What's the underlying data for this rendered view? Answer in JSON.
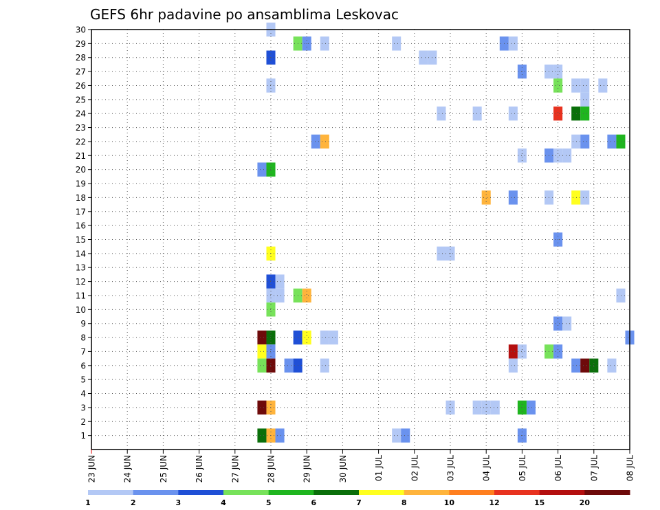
{
  "chart_data": {
    "type": "heatmap",
    "title": "GEFS 6hr padavine po ansamblima Leskovac",
    "xlabel": "",
    "ylabel": "",
    "x_tick_labels": [
      "23 JUN",
      "24 JUN",
      "25 JUN",
      "26 JUN",
      "27 JUN",
      "28 JUN",
      "29 JUN",
      "30 JUN",
      "01 JUL",
      "02 JUL",
      "03 JUL",
      "04 JUL",
      "05 JUL",
      "06 JUL",
      "07 JUL",
      "08 JUL"
    ],
    "y_tick_labels": [
      "1",
      "2",
      "3",
      "4",
      "5",
      "6",
      "7",
      "8",
      "9",
      "10",
      "11",
      "12",
      "13",
      "14",
      "15",
      "16",
      "17",
      "18",
      "19",
      "20",
      "21",
      "22",
      "23",
      "24",
      "25",
      "26",
      "27",
      "28",
      "29",
      "30"
    ],
    "xlim_steps": [
      0,
      60
    ],
    "ylim": [
      0,
      30
    ],
    "grid": true,
    "time_step": "6hr",
    "colorbar": {
      "levels": [
        "1",
        "2",
        "3",
        "4",
        "5",
        "6",
        "7",
        "8",
        "10",
        "12",
        "15",
        "20"
      ],
      "colors": [
        "#b3c8f5",
        "#6a92ee",
        "#1f4fd6",
        "#77e25a",
        "#1fb51f",
        "#0a6f0a",
        "#ffff1f",
        "#ffb43c",
        "#ff7f1f",
        "#e8321f",
        "#b40f0f",
        "#6e0a0a"
      ]
    },
    "cells": [
      {
        "member": 30,
        "step": 20,
        "level": 0
      },
      {
        "member": 29,
        "step": 23,
        "level": 3
      },
      {
        "member": 29,
        "step": 24,
        "level": 1
      },
      {
        "member": 29,
        "step": 26,
        "level": 0
      },
      {
        "member": 29,
        "step": 34,
        "level": 0
      },
      {
        "member": 29,
        "step": 46,
        "level": 1
      },
      {
        "member": 29,
        "step": 47,
        "level": 0
      },
      {
        "member": 28,
        "step": 20,
        "level": 2
      },
      {
        "member": 28,
        "step": 37,
        "level": 0
      },
      {
        "member": 28,
        "step": 38,
        "level": 0
      },
      {
        "member": 27,
        "step": 48,
        "level": 1
      },
      {
        "member": 27,
        "step": 51,
        "level": 0
      },
      {
        "member": 27,
        "step": 52,
        "level": 0
      },
      {
        "member": 26,
        "step": 20,
        "level": 0
      },
      {
        "member": 26,
        "step": 52,
        "level": 3
      },
      {
        "member": 26,
        "step": 54,
        "level": 0
      },
      {
        "member": 26,
        "step": 55,
        "level": 0
      },
      {
        "member": 26,
        "step": 57,
        "level": 0
      },
      {
        "member": 25,
        "step": 55,
        "level": 0
      },
      {
        "member": 24,
        "step": 39,
        "level": 0
      },
      {
        "member": 24,
        "step": 43,
        "level": 0
      },
      {
        "member": 24,
        "step": 47,
        "level": 0
      },
      {
        "member": 24,
        "step": 52,
        "level": 9
      },
      {
        "member": 24,
        "step": 54,
        "level": 5
      },
      {
        "member": 24,
        "step": 55,
        "level": 4
      },
      {
        "member": 22,
        "step": 25,
        "level": 1
      },
      {
        "member": 22,
        "step": 26,
        "level": 7
      },
      {
        "member": 22,
        "step": 54,
        "level": 0
      },
      {
        "member": 22,
        "step": 55,
        "level": 1
      },
      {
        "member": 22,
        "step": 58,
        "level": 1
      },
      {
        "member": 22,
        "step": 59,
        "level": 4
      },
      {
        "member": 21,
        "step": 48,
        "level": 0
      },
      {
        "member": 21,
        "step": 51,
        "level": 1
      },
      {
        "member": 21,
        "step": 52,
        "level": 0
      },
      {
        "member": 21,
        "step": 53,
        "level": 0
      },
      {
        "member": 20,
        "step": 19,
        "level": 1
      },
      {
        "member": 20,
        "step": 20,
        "level": 4
      },
      {
        "member": 18,
        "step": 44,
        "level": 7
      },
      {
        "member": 18,
        "step": 47,
        "level": 1
      },
      {
        "member": 18,
        "step": 51,
        "level": 0
      },
      {
        "member": 18,
        "step": 54,
        "level": 6
      },
      {
        "member": 18,
        "step": 55,
        "level": 0
      },
      {
        "member": 15,
        "step": 52,
        "level": 1
      },
      {
        "member": 14,
        "step": 20,
        "level": 6
      },
      {
        "member": 14,
        "step": 39,
        "level": 0
      },
      {
        "member": 14,
        "step": 40,
        "level": 0
      },
      {
        "member": 12,
        "step": 20,
        "level": 2
      },
      {
        "member": 12,
        "step": 21,
        "level": 0
      },
      {
        "member": 11,
        "step": 20,
        "level": 0
      },
      {
        "member": 11,
        "step": 21,
        "level": 0
      },
      {
        "member": 11,
        "step": 23,
        "level": 3
      },
      {
        "member": 11,
        "step": 24,
        "level": 7
      },
      {
        "member": 11,
        "step": 59,
        "level": 0
      },
      {
        "member": 10,
        "step": 20,
        "level": 3
      },
      {
        "member": 9,
        "step": 52,
        "level": 1
      },
      {
        "member": 9,
        "step": 53,
        "level": 0
      },
      {
        "member": 8,
        "step": 19,
        "level": 11
      },
      {
        "member": 8,
        "step": 20,
        "level": 5
      },
      {
        "member": 8,
        "step": 23,
        "level": 2
      },
      {
        "member": 8,
        "step": 24,
        "level": 6
      },
      {
        "member": 8,
        "step": 26,
        "level": 0
      },
      {
        "member": 8,
        "step": 27,
        "level": 0
      },
      {
        "member": 8,
        "step": 60,
        "level": 1
      },
      {
        "member": 7,
        "step": 19,
        "level": 6
      },
      {
        "member": 7,
        "step": 20,
        "level": 1
      },
      {
        "member": 7,
        "step": 47,
        "level": 10
      },
      {
        "member": 7,
        "step": 48,
        "level": 0
      },
      {
        "member": 7,
        "step": 51,
        "level": 3
      },
      {
        "member": 7,
        "step": 52,
        "level": 1
      },
      {
        "member": 6,
        "step": 19,
        "level": 3
      },
      {
        "member": 6,
        "step": 20,
        "level": 11
      },
      {
        "member": 6,
        "step": 22,
        "level": 1
      },
      {
        "member": 6,
        "step": 23,
        "level": 2
      },
      {
        "member": 6,
        "step": 26,
        "level": 0
      },
      {
        "member": 6,
        "step": 47,
        "level": 0
      },
      {
        "member": 6,
        "step": 54,
        "level": 1
      },
      {
        "member": 6,
        "step": 55,
        "level": 11
      },
      {
        "member": 6,
        "step": 56,
        "level": 5
      },
      {
        "member": 6,
        "step": 58,
        "level": 0
      },
      {
        "member": 3,
        "step": 19,
        "level": 11
      },
      {
        "member": 3,
        "step": 20,
        "level": 7
      },
      {
        "member": 3,
        "step": 40,
        "level": 0
      },
      {
        "member": 3,
        "step": 43,
        "level": 0
      },
      {
        "member": 3,
        "step": 44,
        "level": 0
      },
      {
        "member": 3,
        "step": 45,
        "level": 0
      },
      {
        "member": 3,
        "step": 48,
        "level": 4
      },
      {
        "member": 3,
        "step": 49,
        "level": 1
      },
      {
        "member": 1,
        "step": 19,
        "level": 5
      },
      {
        "member": 1,
        "step": 20,
        "level": 7
      },
      {
        "member": 1,
        "step": 21,
        "level": 1
      },
      {
        "member": 1,
        "step": 34,
        "level": 0
      },
      {
        "member": 1,
        "step": 35,
        "level": 1
      },
      {
        "member": 1,
        "step": 48,
        "level": 1
      }
    ]
  }
}
